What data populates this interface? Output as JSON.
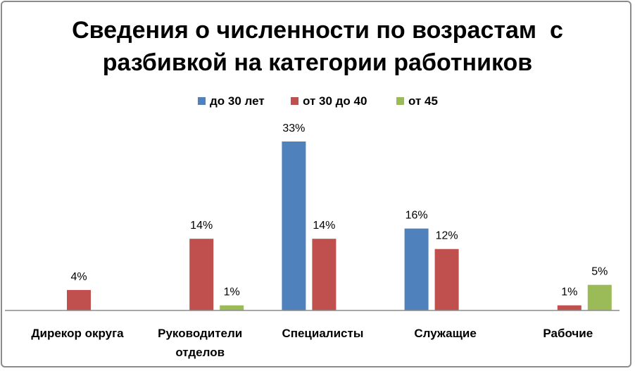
{
  "chart_data": {
    "type": "bar",
    "title": [
      "Сведения о численности по возрастам  с",
      "разбивкой на категории работников"
    ],
    "legend_position": "top",
    "categories": [
      [
        "Дирекор округа"
      ],
      [
        "Руководители",
        "отделов"
      ],
      [
        "Специалисты"
      ],
      [
        "Служащие"
      ],
      [
        "Рабочие"
      ]
    ],
    "series": [
      {
        "name": "до 30 лет",
        "color": "#4f81bd",
        "values": [
          null,
          null,
          33,
          16,
          null
        ],
        "labels": [
          "",
          "",
          "33%",
          "16%",
          ""
        ]
      },
      {
        "name": "от 30 до 40",
        "color": "#c0504d",
        "values": [
          4,
          14,
          14,
          12,
          1
        ],
        "labels": [
          "4%",
          "14%",
          "14%",
          "12%",
          "1%"
        ]
      },
      {
        "name": "от 45",
        "color": "#9bbb59",
        "values": [
          null,
          1,
          null,
          null,
          5
        ],
        "labels": [
          "",
          "1%",
          "",
          "",
          "5%"
        ]
      }
    ],
    "ylim": [
      0,
      33
    ],
    "grid": false,
    "xlabel": "",
    "ylabel": ""
  }
}
